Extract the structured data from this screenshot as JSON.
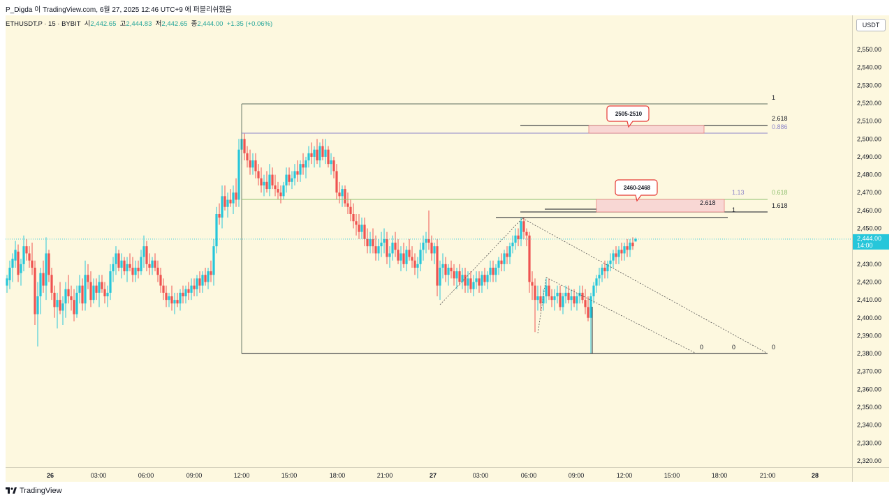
{
  "header": {
    "title": "P_Digda 이 TradingView.com, 6월 27, 2025 12:46 UTC+9 에 퍼블리쉬했음"
  },
  "symbol": {
    "name": "ETHUSDT.P · 15 · BYBIT",
    "open_label": "시",
    "open": "2,442.65",
    "high_label": "고",
    "high": "2,444.83",
    "low_label": "저",
    "low": "2,442.65",
    "close_label": "종",
    "close": "2,444.00",
    "change": "+1.35 (+0.06%)"
  },
  "price_axis": {
    "currency": "USDT",
    "ticks": [
      "2,550.00",
      "2,540.00",
      "2,530.00",
      "2,520.00",
      "2,510.00",
      "2,500.00",
      "2,490.00",
      "2,480.00",
      "2,470.00",
      "2,460.00",
      "2,450.00",
      "2,430.00",
      "2,420.00",
      "2,410.00",
      "2,400.00",
      "2,390.00",
      "2,380.00",
      "2,370.00",
      "2,360.00",
      "2,350.00",
      "2,340.00",
      "2,330.00",
      "2,320.00"
    ],
    "current_price": "2,444.00",
    "countdown": "14:00"
  },
  "time_axis": {
    "ticks": [
      "26",
      "03:00",
      "06:00",
      "09:00",
      "12:00",
      "15:00",
      "18:00",
      "21:00",
      "27",
      "03:00",
      "06:00",
      "09:00",
      "12:00",
      "15:00",
      "18:00",
      "21:00",
      "28"
    ]
  },
  "annotations": {
    "box_top": "2505-2510",
    "box_mid": "2460-2468",
    "fib": [
      "1",
      "2.618",
      "0.886",
      "1.13",
      "0.618",
      "2.618",
      "1",
      "1.618",
      "0",
      "0",
      "0"
    ]
  },
  "footer": {
    "brand": "TradingView"
  },
  "colors": {
    "up": "#26c6da",
    "down": "#ef5350",
    "background": "#fdf8df",
    "price_label": "#26c6da",
    "zone": "#f8d7d4"
  }
}
